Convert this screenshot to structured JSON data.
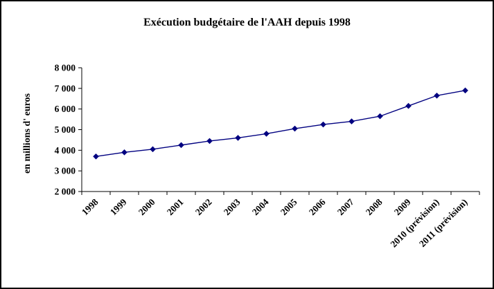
{
  "chart_data": {
    "type": "line",
    "title": "Exécution budgétaire de l'AAH depuis 1998",
    "ylabel": "en millions d' euros",
    "xlabel": "",
    "categories": [
      "1998",
      "1999",
      "2000",
      "2001",
      "2002",
      "2003",
      "2004",
      "2005",
      "2006",
      "2007",
      "2008",
      "2009",
      "2010 (prévision)",
      "2011 (prévision)"
    ],
    "values": [
      3700,
      3900,
      4050,
      4250,
      4450,
      4600,
      4800,
      5050,
      5250,
      5400,
      5650,
      6150,
      6650,
      6900
    ],
    "ylim": [
      2000,
      8000
    ],
    "ytick_step": 1000,
    "ytick_labels": [
      "2 000",
      "3 000",
      "4 000",
      "5 000",
      "6 000",
      "7 000",
      "8 000"
    ],
    "grid": false,
    "legend_position": "none",
    "line_color": "#000080",
    "marker": "diamond",
    "frame_border_color": "#000000",
    "background_color": "#ffffff"
  }
}
